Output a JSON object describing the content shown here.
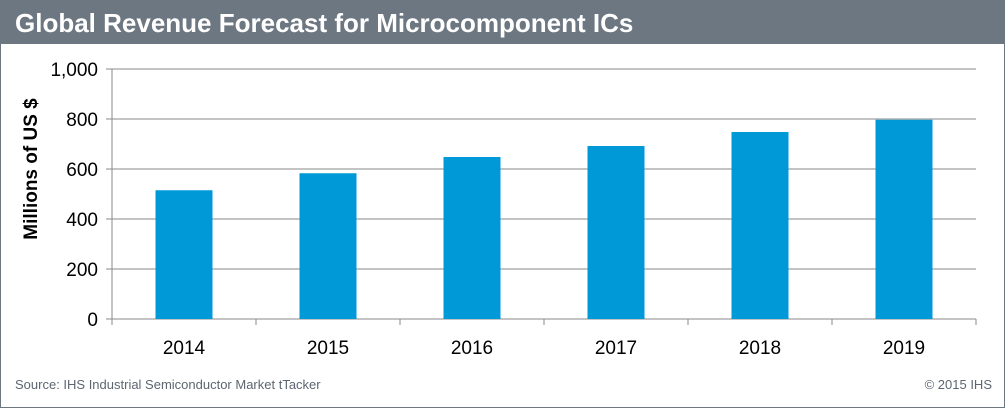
{
  "header": {
    "title": "Global Revenue Forecast for Microcomponent ICs"
  },
  "footer": {
    "source": "Source: IHS Industrial Semiconductor Market tTacker",
    "copyright": "© 2015 IHS"
  },
  "colors": {
    "bar": "#0099d8",
    "title_bar": "#6d7782",
    "gridline": "#8a8a8a",
    "text": "#000000"
  },
  "chart_data": {
    "type": "bar",
    "title": "Global Revenue Forecast for Microcomponent ICs",
    "xlabel": "",
    "ylabel": "Millions of US $",
    "categories": [
      "2014",
      "2015",
      "2016",
      "2017",
      "2018",
      "2019"
    ],
    "values": [
      515,
      583,
      648,
      692,
      748,
      797
    ],
    "ylim": [
      0,
      1000
    ],
    "yticks": [
      0,
      200,
      400,
      600,
      800,
      1000
    ],
    "ytick_labels": [
      "0",
      "200",
      "400",
      "600",
      "800",
      "1,000"
    ],
    "grid": true,
    "legend": "none"
  }
}
